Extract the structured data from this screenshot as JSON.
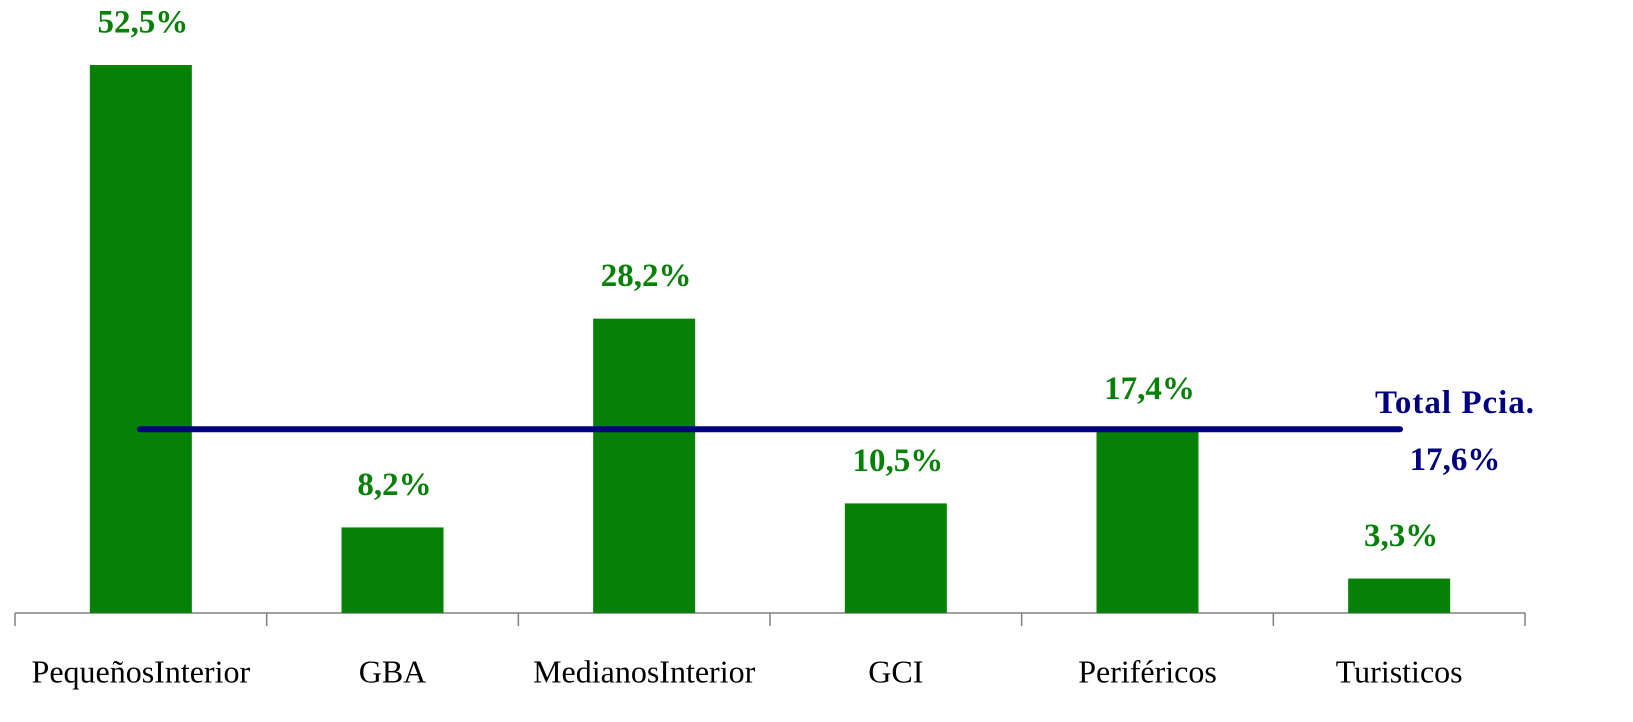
{
  "chart_data": {
    "type": "bar",
    "categories": [
      "PequeñosInterior",
      "GBA",
      "MedianosInterior",
      "GCI",
      "Periféricos",
      "Turisticos"
    ],
    "values": [
      52.5,
      8.2,
      28.2,
      10.5,
      17.4,
      3.3
    ],
    "value_labels": [
      "52,5%",
      "8,2%",
      "28,2%",
      "10,5%",
      "17,4%",
      "3,3%"
    ],
    "color": "#068006",
    "reference_line": {
      "label": "Total Pcia.",
      "value": 17.6,
      "value_label": "17,6%",
      "color": "#000080"
    }
  }
}
